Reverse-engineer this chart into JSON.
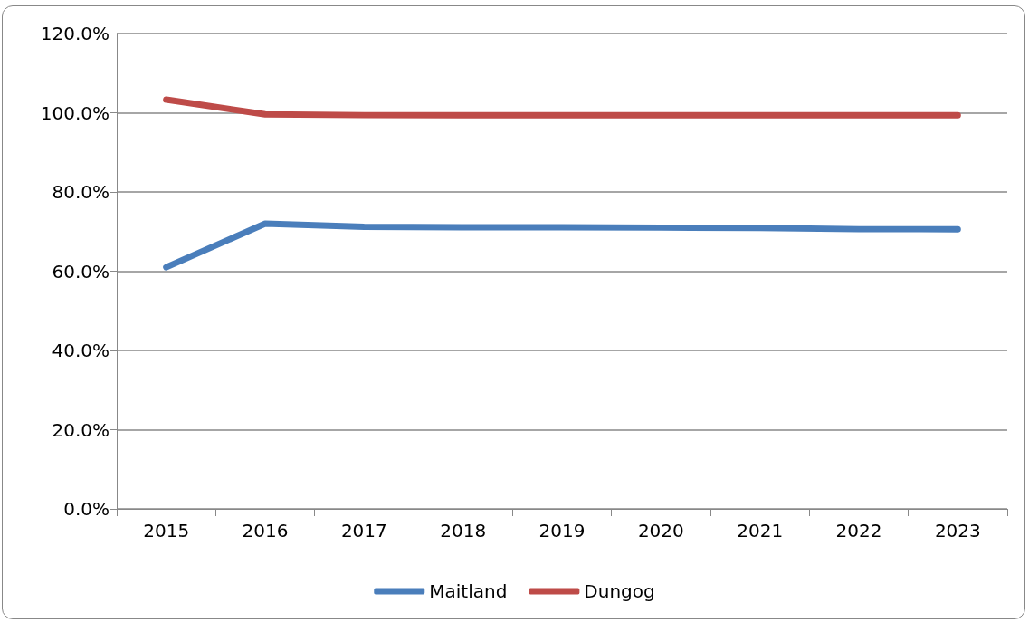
{
  "chart_data": {
    "type": "line",
    "categories": [
      "2015",
      "2016",
      "2017",
      "2018",
      "2019",
      "2020",
      "2021",
      "2022",
      "2023"
    ],
    "series": [
      {
        "name": "Maitland",
        "color": "#4a7ebb",
        "values": [
          61.0,
          72.0,
          71.2,
          71.1,
          71.1,
          71.0,
          70.9,
          70.6,
          70.6
        ]
      },
      {
        "name": "Dungog",
        "color": "#be4b48",
        "values": [
          103.3,
          99.6,
          99.4,
          99.4,
          99.4,
          99.4,
          99.4,
          99.4,
          99.4
        ]
      }
    ],
    "ylim": [
      0,
      120
    ],
    "yticks": [
      {
        "value": 0,
        "label": "0.0%"
      },
      {
        "value": 20,
        "label": "20.0%"
      },
      {
        "value": 40,
        "label": "40.0%"
      },
      {
        "value": 60,
        "label": "60.0%"
      },
      {
        "value": 80,
        "label": "80.0%"
      },
      {
        "value": 100,
        "label": "100.0%"
      },
      {
        "value": 120,
        "label": "120.0%"
      }
    ],
    "grid": "y",
    "legend": "bottom",
    "marker": "none",
    "line_style": "solid"
  }
}
